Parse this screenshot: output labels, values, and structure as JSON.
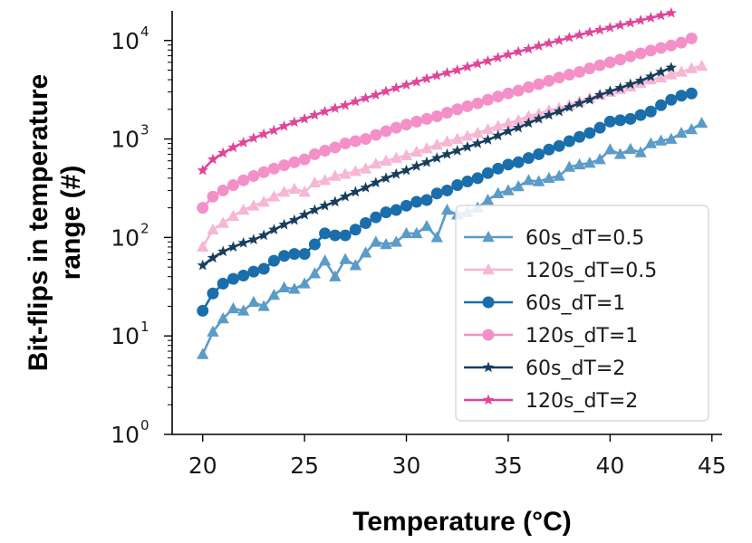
{
  "chart_data": {
    "type": "line",
    "title": "",
    "xlabel": "Temperature (°C)",
    "ylabel_lines": [
      "Bit-flips in temperature",
      "range (#)"
    ],
    "y_scale": "log",
    "xlim": [
      18.5,
      45.5
    ],
    "ylim": [
      1,
      20000
    ],
    "x_ticks": [
      20,
      25,
      30,
      35,
      40,
      45
    ],
    "y_ticks": [
      {
        "value": 1,
        "base": "10",
        "exp": "0"
      },
      {
        "value": 10,
        "base": "10",
        "exp": "1"
      },
      {
        "value": 100,
        "base": "10",
        "exp": "2"
      },
      {
        "value": 1000,
        "base": "10",
        "exp": "3"
      },
      {
        "value": 10000,
        "base": "10",
        "exp": "4"
      }
    ],
    "grid": false,
    "legend_position": "lower-right",
    "series": [
      {
        "name": "60s_dT=0.5",
        "color": "#5b9bc8",
        "marker": "triangle",
        "x": [
          20,
          20.5,
          21,
          21.5,
          22,
          22.5,
          23,
          23.5,
          24,
          24.5,
          25,
          25.5,
          26,
          26.5,
          27,
          27.5,
          28,
          28.5,
          29,
          29.5,
          30,
          30.5,
          31,
          31.5,
          32,
          32.5,
          33,
          33.5,
          34,
          34.5,
          35,
          35.5,
          36,
          36.5,
          37,
          37.5,
          38,
          38.5,
          39,
          39.5,
          40,
          40.5,
          41,
          41.5,
          42,
          42.5,
          43,
          43.5,
          44,
          44.5
        ],
        "y": [
          6.5,
          11,
          15,
          19,
          18,
          22,
          20,
          26,
          31,
          30,
          34,
          43,
          58,
          40,
          60,
          52,
          70,
          90,
          85,
          90,
          110,
          110,
          130,
          100,
          190,
          170,
          180,
          200,
          240,
          280,
          300,
          330,
          380,
          370,
          400,
          420,
          520,
          550,
          570,
          620,
          780,
          700,
          790,
          730,
          900,
          960,
          1000,
          1150,
          1250,
          1450
        ]
      },
      {
        "name": "120s_dT=0.5",
        "color": "#f7b6d4",
        "marker": "triangle",
        "x": [
          20,
          20.5,
          21,
          21.5,
          22,
          22.5,
          23,
          23.5,
          24,
          24.5,
          25,
          25.5,
          26,
          26.5,
          27,
          27.5,
          28,
          28.5,
          29,
          29.5,
          30,
          30.5,
          31,
          31.5,
          32,
          32.5,
          33,
          33.5,
          34,
          34.5,
          35,
          35.5,
          36,
          36.5,
          37,
          37.5,
          38,
          38.5,
          39,
          39.5,
          40,
          40.5,
          41,
          41.5,
          42,
          42.5,
          43,
          43.5,
          44,
          44.5
        ],
        "y": [
          80,
          120,
          140,
          165,
          190,
          210,
          230,
          260,
          290,
          310,
          290,
          360,
          380,
          420,
          440,
          470,
          500,
          560,
          600,
          640,
          680,
          740,
          800,
          870,
          940,
          1000,
          1070,
          1150,
          1250,
          1350,
          1450,
          1550,
          1700,
          1800,
          1950,
          2050,
          2200,
          2400,
          2600,
          2800,
          3000,
          3200,
          3400,
          3700,
          4000,
          4200,
          4500,
          4800,
          5200,
          5500
        ]
      },
      {
        "name": "60s_dT=1",
        "color": "#1a6eab",
        "marker": "circle",
        "x": [
          20,
          20.5,
          21,
          21.5,
          22,
          22.5,
          23,
          23.5,
          24,
          24.5,
          25,
          25.5,
          26,
          26.5,
          27,
          27.5,
          28,
          28.5,
          29,
          29.5,
          30,
          30.5,
          31,
          31.5,
          32,
          32.5,
          33,
          33.5,
          34,
          34.5,
          35,
          35.5,
          36,
          36.5,
          37,
          37.5,
          38,
          38.5,
          39,
          39.5,
          40,
          40.5,
          41,
          41.5,
          42,
          42.5,
          43,
          43.5,
          44
        ],
        "y": [
          18,
          27,
          34,
          38,
          41,
          45,
          48,
          58,
          65,
          68,
          68,
          85,
          110,
          105,
          105,
          120,
          140,
          160,
          180,
          190,
          210,
          230,
          240,
          280,
          300,
          340,
          370,
          400,
          450,
          500,
          550,
          580,
          640,
          700,
          780,
          850,
          950,
          1050,
          1150,
          1300,
          1500,
          1550,
          1600,
          1750,
          1900,
          2200,
          2500,
          2750,
          2900
        ]
      },
      {
        "name": "120s_dT=1",
        "color": "#f490c8",
        "marker": "circle",
        "x": [
          20,
          20.5,
          21,
          21.5,
          22,
          22.5,
          23,
          23.5,
          24,
          24.5,
          25,
          25.5,
          26,
          26.5,
          27,
          27.5,
          28,
          28.5,
          29,
          29.5,
          30,
          30.5,
          31,
          31.5,
          32,
          32.5,
          33,
          33.5,
          34,
          34.5,
          35,
          35.5,
          36,
          36.5,
          37,
          37.5,
          38,
          38.5,
          39,
          39.5,
          40,
          40.5,
          41,
          41.5,
          42,
          42.5,
          43,
          43.5,
          44
        ],
        "y": [
          200,
          260,
          300,
          340,
          380,
          420,
          460,
          500,
          540,
          580,
          620,
          700,
          760,
          820,
          900,
          950,
          1000,
          1100,
          1200,
          1300,
          1400,
          1500,
          1600,
          1700,
          1850,
          2000,
          2150,
          2300,
          2500,
          2700,
          2900,
          3100,
          3350,
          3600,
          3900,
          4200,
          4500,
          4800,
          5200,
          5600,
          6000,
          6400,
          6900,
          7400,
          7900,
          8400,
          8900,
          9500,
          10500
        ]
      },
      {
        "name": "60s_dT=2",
        "color": "#173e5f",
        "marker": "star",
        "x": [
          20,
          20.5,
          21,
          21.5,
          22,
          22.5,
          23,
          23.5,
          24,
          24.5,
          25,
          25.5,
          26,
          26.5,
          27,
          27.5,
          28,
          28.5,
          29,
          29.5,
          30,
          30.5,
          31,
          31.5,
          32,
          32.5,
          33,
          33.5,
          34,
          34.5,
          35,
          35.5,
          36,
          36.5,
          37,
          37.5,
          38,
          38.5,
          39,
          39.5,
          40,
          40.5,
          41,
          41.5,
          42,
          42.5,
          43
        ],
        "y": [
          52,
          62,
          72,
          80,
          88,
          95,
          105,
          120,
          135,
          150,
          170,
          190,
          210,
          230,
          260,
          290,
          320,
          360,
          400,
          440,
          480,
          530,
          580,
          640,
          700,
          760,
          830,
          900,
          980,
          1080,
          1200,
          1300,
          1450,
          1600,
          1750,
          1900,
          2100,
          2300,
          2500,
          2800,
          3050,
          3300,
          3600,
          3900,
          4300,
          4800,
          5300
        ]
      },
      {
        "name": "120s_dT=2",
        "color": "#e0459a",
        "marker": "star",
        "x": [
          20,
          20.5,
          21,
          21.5,
          22,
          22.5,
          23,
          23.5,
          24,
          24.5,
          25,
          25.5,
          26,
          26.5,
          27,
          27.5,
          28,
          28.5,
          29,
          29.5,
          30,
          30.5,
          31,
          31.5,
          32,
          32.5,
          33,
          33.5,
          34,
          34.5,
          35,
          35.5,
          36,
          36.5,
          37,
          37.5,
          38,
          38.5,
          39,
          39.5,
          40,
          40.5,
          41,
          41.5,
          42,
          42.5,
          43
        ],
        "y": [
          480,
          620,
          720,
          820,
          920,
          1020,
          1120,
          1220,
          1350,
          1480,
          1600,
          1750,
          1900,
          2050,
          2200,
          2400,
          2600,
          2800,
          3050,
          3300,
          3550,
          3800,
          4100,
          4400,
          4700,
          5000,
          5400,
          5800,
          6200,
          6700,
          7200,
          7700,
          8200,
          8800,
          9400,
          10000,
          10700,
          11400,
          12100,
          12800,
          13500,
          14300,
          15100,
          16000,
          17000,
          18000,
          19000
        ]
      }
    ]
  }
}
